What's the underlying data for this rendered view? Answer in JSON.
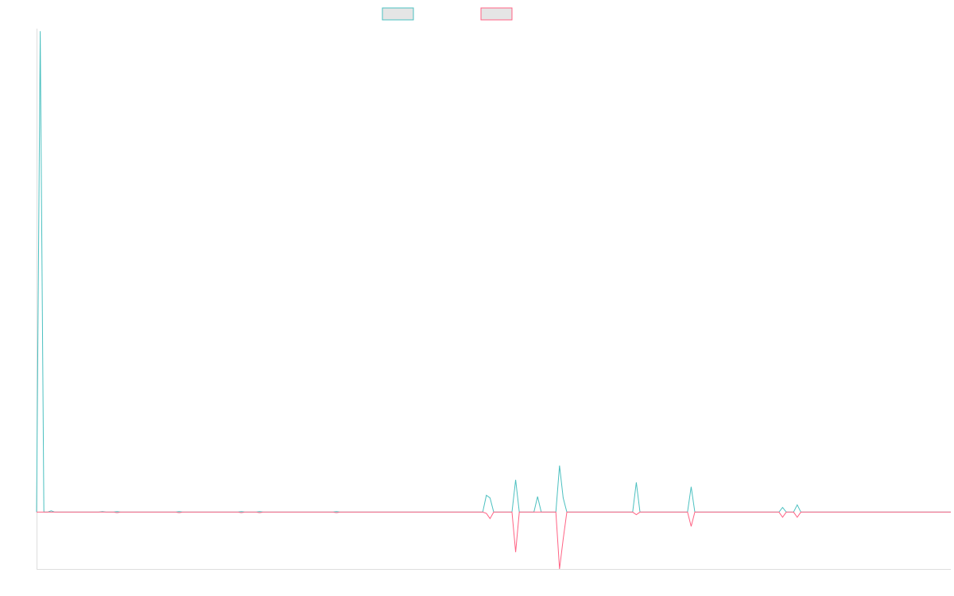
{
  "chart_data": {
    "type": "line",
    "title": "",
    "xlabel": "",
    "ylabel": "",
    "grid": false,
    "legend_position": "top-center",
    "ylim": [
      -2.2,
      18.7
    ],
    "x_count": 250,
    "series": [
      {
        "color": "#4bc0c0",
        "fill": "#e5e5e5",
        "points": [
          [
            0,
            0
          ],
          [
            1,
            18.6
          ],
          [
            2,
            0
          ],
          [
            3,
            0
          ],
          [
            4,
            0.05
          ],
          [
            5,
            0
          ],
          [
            17,
            0
          ],
          [
            18,
            0.02
          ],
          [
            19,
            0
          ],
          [
            21,
            0
          ],
          [
            22,
            0.02
          ],
          [
            23,
            0
          ],
          [
            38,
            0
          ],
          [
            39,
            0.02
          ],
          [
            40,
            0
          ],
          [
            55,
            0
          ],
          [
            56,
            0.02
          ],
          [
            57,
            0
          ],
          [
            60,
            0
          ],
          [
            61,
            0.02
          ],
          [
            62,
            0
          ],
          [
            81,
            0
          ],
          [
            82,
            0.02
          ],
          [
            83,
            0
          ],
          [
            122,
            0
          ],
          [
            123,
            0.65
          ],
          [
            124,
            0.55
          ],
          [
            125,
            0
          ],
          [
            126,
            0
          ],
          [
            130,
            0
          ],
          [
            131,
            1.25
          ],
          [
            132,
            0
          ],
          [
            136,
            0
          ],
          [
            137,
            0.6
          ],
          [
            138,
            0
          ],
          [
            142,
            0
          ],
          [
            143,
            1.8
          ],
          [
            144,
            0.55
          ],
          [
            145,
            0
          ],
          [
            163,
            0
          ],
          [
            164,
            1.15
          ],
          [
            165,
            0
          ],
          [
            178,
            0
          ],
          [
            179,
            0.98
          ],
          [
            180,
            0
          ],
          [
            203,
            0
          ],
          [
            204,
            0.18
          ],
          [
            205,
            0
          ],
          [
            207,
            0
          ],
          [
            208,
            0.28
          ],
          [
            209,
            0
          ],
          [
            250,
            0
          ]
        ]
      },
      {
        "color": "#ff6384",
        "fill": "#e5e5e5",
        "points": [
          [
            0,
            0
          ],
          [
            1,
            0
          ],
          [
            4,
            0
          ],
          [
            5,
            0
          ],
          [
            18,
            0
          ],
          [
            21,
            0
          ],
          [
            22,
            -0.02
          ],
          [
            23,
            0
          ],
          [
            38,
            0
          ],
          [
            39,
            -0.02
          ],
          [
            40,
            0
          ],
          [
            55,
            0
          ],
          [
            56,
            -0.02
          ],
          [
            57,
            0
          ],
          [
            60,
            0
          ],
          [
            61,
            -0.02
          ],
          [
            62,
            0
          ],
          [
            81,
            0
          ],
          [
            82,
            -0.02
          ],
          [
            83,
            0
          ],
          [
            122,
            0
          ],
          [
            123,
            -0.05
          ],
          [
            124,
            -0.25
          ],
          [
            125,
            0
          ],
          [
            126,
            0
          ],
          [
            130,
            0
          ],
          [
            131,
            -1.55
          ],
          [
            132,
            0
          ],
          [
            136,
            0
          ],
          [
            137,
            0
          ],
          [
            138,
            0
          ],
          [
            142,
            0
          ],
          [
            143,
            -2.2
          ],
          [
            144,
            -1.05
          ],
          [
            145,
            0
          ],
          [
            163,
            0
          ],
          [
            164,
            -0.1
          ],
          [
            165,
            0
          ],
          [
            178,
            0
          ],
          [
            179,
            -0.55
          ],
          [
            180,
            0
          ],
          [
            203,
            0
          ],
          [
            204,
            -0.2
          ],
          [
            205,
            0
          ],
          [
            207,
            0
          ],
          [
            208,
            -0.2
          ],
          [
            209,
            0
          ],
          [
            250,
            0
          ]
        ]
      }
    ]
  }
}
